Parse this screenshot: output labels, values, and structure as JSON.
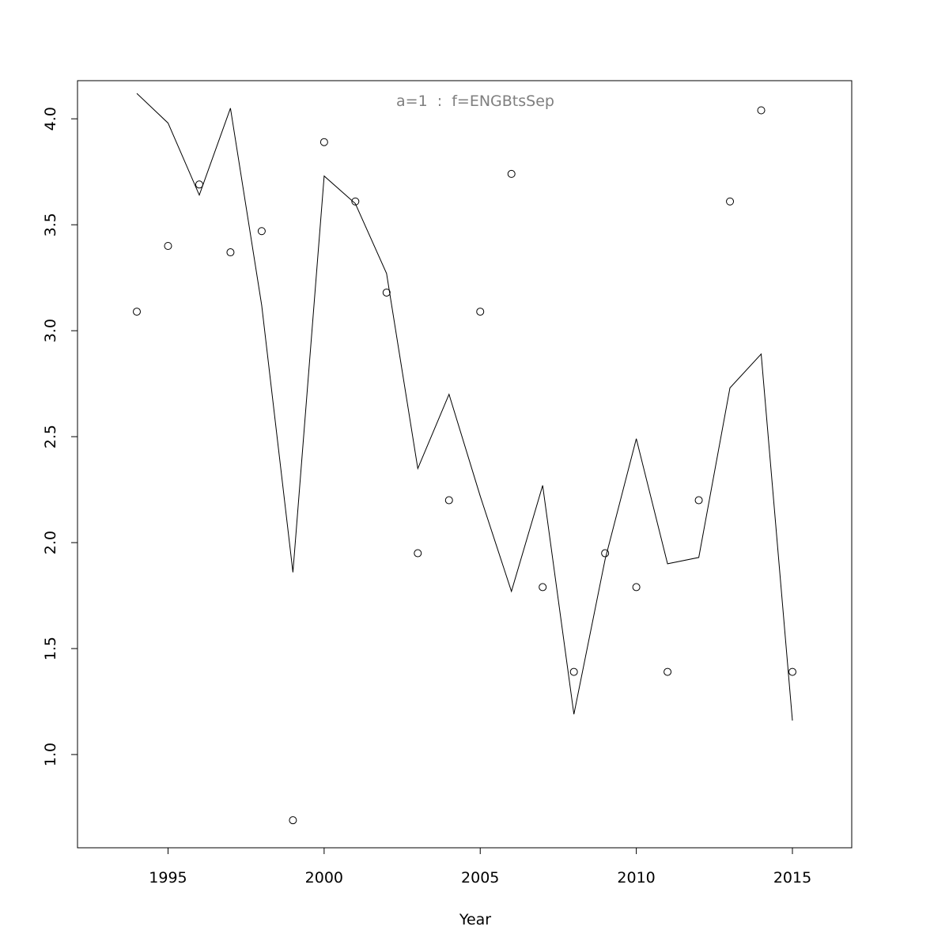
{
  "chart_data": {
    "type": "line",
    "title": "a=1  :  f=ENGBtsSep",
    "xlabel": "Year",
    "ylabel": "",
    "xlim": [
      1992.1,
      2016.9
    ],
    "ylim": [
      0.56,
      4.18
    ],
    "x_ticks": [
      1995,
      2000,
      2005,
      2010,
      2015
    ],
    "y_ticks": [
      1.0,
      1.5,
      2.0,
      2.5,
      3.0,
      3.5,
      4.0
    ],
    "x_tick_labels": [
      "1995",
      "2000",
      "2005",
      "2010",
      "2015"
    ],
    "y_tick_labels": [
      "1.0",
      "1.5",
      "2.0",
      "2.5",
      "3.0",
      "3.5",
      "4.0"
    ],
    "grid": false,
    "x": [
      1994,
      1995,
      1996,
      1997,
      1998,
      1999,
      2000,
      2001,
      2002,
      2003,
      2004,
      2005,
      2006,
      2007,
      2008,
      2009,
      2010,
      2011,
      2012,
      2013,
      2014,
      2015
    ],
    "series": [
      {
        "kind": "points",
        "marker": "open-circle",
        "values": [
          3.09,
          3.4,
          3.69,
          3.37,
          3.47,
          0.69,
          3.89,
          3.61,
          3.18,
          1.95,
          2.2,
          3.09,
          3.74,
          1.79,
          1.39,
          1.95,
          1.79,
          1.39,
          2.2,
          3.61,
          4.04,
          1.39
        ]
      },
      {
        "kind": "line",
        "values": [
          4.12,
          3.98,
          3.64,
          4.05,
          3.12,
          1.86,
          3.73,
          3.6,
          3.27,
          2.35,
          2.7,
          2.22,
          1.77,
          2.27,
          1.19,
          1.92,
          2.49,
          1.9,
          1.93,
          2.73,
          2.89,
          1.16
        ]
      }
    ]
  }
}
